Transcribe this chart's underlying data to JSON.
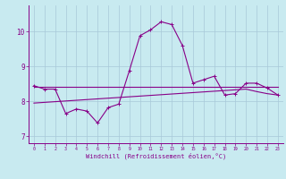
{
  "xlabel": "Windchill (Refroidissement éolien,°C)",
  "background_color": "#c8eaf0",
  "grid_color": "#a8c8d8",
  "line_color": "#880088",
  "x_hours": [
    0,
    1,
    2,
    3,
    4,
    5,
    6,
    7,
    8,
    9,
    10,
    11,
    12,
    13,
    14,
    15,
    16,
    17,
    18,
    19,
    20,
    21,
    22,
    23
  ],
  "series_wiggly": [
    8.45,
    8.35,
    8.35,
    7.65,
    7.78,
    7.72,
    7.38,
    7.82,
    7.92,
    8.88,
    9.88,
    10.05,
    10.28,
    10.2,
    9.6,
    8.52,
    8.62,
    8.72,
    8.18,
    8.22,
    8.52,
    8.52,
    8.38,
    8.18
  ],
  "series_flat": [
    8.42,
    8.42,
    8.42,
    8.42,
    8.42,
    8.42,
    8.42,
    8.42,
    8.42,
    8.42,
    8.42,
    8.42,
    8.42,
    8.42,
    8.42,
    8.42,
    8.42,
    8.42,
    8.42,
    8.42,
    8.42,
    8.42,
    8.42,
    8.42
  ],
  "series_rising": [
    7.95,
    7.97,
    7.99,
    8.01,
    8.03,
    8.05,
    8.07,
    8.09,
    8.11,
    8.13,
    8.15,
    8.17,
    8.19,
    8.21,
    8.23,
    8.25,
    8.27,
    8.29,
    8.31,
    8.33,
    8.35,
    8.28,
    8.22,
    8.18
  ],
  "ylim": [
    6.8,
    10.75
  ],
  "yticks": [
    7,
    8,
    9,
    10
  ],
  "xticks": [
    0,
    1,
    2,
    3,
    4,
    5,
    6,
    7,
    8,
    9,
    10,
    11,
    12,
    13,
    14,
    15,
    16,
    17,
    18,
    19,
    20,
    21,
    22,
    23
  ]
}
